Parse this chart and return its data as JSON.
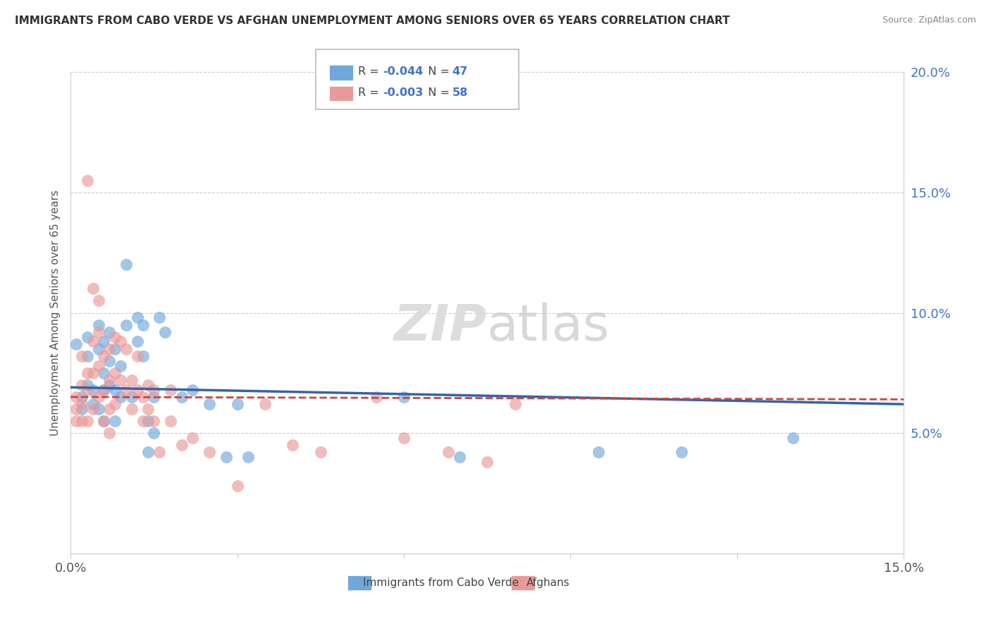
{
  "title": "IMMIGRANTS FROM CABO VERDE VS AFGHAN UNEMPLOYMENT AMONG SENIORS OVER 65 YEARS CORRELATION CHART",
  "source": "Source: ZipAtlas.com",
  "ylabel": "Unemployment Among Seniors over 65 years",
  "xlim": [
    0.0,
    0.15
  ],
  "ylim": [
    0.0,
    0.2
  ],
  "xticks": [
    0.0,
    0.03,
    0.06,
    0.09,
    0.12,
    0.15
  ],
  "yticks": [
    0.0,
    0.05,
    0.1,
    0.15,
    0.2
  ],
  "xtick_labels": [
    "0.0%",
    "",
    "",
    "",
    "",
    "15.0%"
  ],
  "ytick_labels": [
    "",
    "5.0%",
    "10.0%",
    "15.0%",
    "20.0%"
  ],
  "series1_color": "#6fa8dc",
  "series2_color": "#ea9999",
  "series1_label": "Immigrants from Cabo Verde",
  "series2_label": "Afghans",
  "series1_R": -0.044,
  "series1_N": 47,
  "series2_R": -0.003,
  "series2_N": 58,
  "line1_color": "#3465a4",
  "line2_color": "#cc4444",
  "watermark_zip": "ZIP",
  "watermark_atlas": "atlas",
  "background_color": "#ffffff",
  "grid_color": "#cccccc",
  "series1_x": [
    0.001,
    0.002,
    0.002,
    0.003,
    0.003,
    0.003,
    0.004,
    0.004,
    0.005,
    0.005,
    0.005,
    0.006,
    0.006,
    0.006,
    0.006,
    0.007,
    0.007,
    0.007,
    0.008,
    0.008,
    0.008,
    0.009,
    0.009,
    0.01,
    0.01,
    0.011,
    0.012,
    0.012,
    0.013,
    0.013,
    0.014,
    0.014,
    0.015,
    0.015,
    0.016,
    0.017,
    0.02,
    0.022,
    0.025,
    0.028,
    0.03,
    0.032,
    0.06,
    0.07,
    0.095,
    0.11,
    0.13
  ],
  "series1_y": [
    0.087,
    0.065,
    0.06,
    0.09,
    0.082,
    0.07,
    0.068,
    0.062,
    0.095,
    0.085,
    0.06,
    0.088,
    0.075,
    0.068,
    0.055,
    0.092,
    0.08,
    0.07,
    0.085,
    0.068,
    0.055,
    0.078,
    0.065,
    0.12,
    0.095,
    0.065,
    0.098,
    0.088,
    0.095,
    0.082,
    0.055,
    0.042,
    0.065,
    0.05,
    0.098,
    0.092,
    0.065,
    0.068,
    0.062,
    0.04,
    0.062,
    0.04,
    0.065,
    0.04,
    0.042,
    0.042,
    0.048
  ],
  "series2_x": [
    0.001,
    0.001,
    0.001,
    0.002,
    0.002,
    0.002,
    0.002,
    0.003,
    0.003,
    0.003,
    0.003,
    0.004,
    0.004,
    0.004,
    0.004,
    0.005,
    0.005,
    0.005,
    0.005,
    0.006,
    0.006,
    0.006,
    0.007,
    0.007,
    0.007,
    0.007,
    0.008,
    0.008,
    0.008,
    0.009,
    0.009,
    0.01,
    0.01,
    0.011,
    0.011,
    0.012,
    0.012,
    0.013,
    0.013,
    0.014,
    0.014,
    0.015,
    0.015,
    0.016,
    0.018,
    0.018,
    0.02,
    0.022,
    0.025,
    0.03,
    0.035,
    0.04,
    0.045,
    0.055,
    0.06,
    0.068,
    0.075,
    0.08
  ],
  "series2_y": [
    0.065,
    0.06,
    0.055,
    0.082,
    0.07,
    0.062,
    0.055,
    0.155,
    0.075,
    0.068,
    0.055,
    0.11,
    0.088,
    0.075,
    0.06,
    0.105,
    0.092,
    0.078,
    0.065,
    0.082,
    0.068,
    0.055,
    0.085,
    0.072,
    0.06,
    0.05,
    0.09,
    0.075,
    0.062,
    0.088,
    0.072,
    0.085,
    0.068,
    0.072,
    0.06,
    0.082,
    0.068,
    0.065,
    0.055,
    0.07,
    0.06,
    0.068,
    0.055,
    0.042,
    0.068,
    0.055,
    0.045,
    0.048,
    0.042,
    0.028,
    0.062,
    0.045,
    0.042,
    0.065,
    0.048,
    0.042,
    0.038,
    0.062
  ],
  "line1_x0": 0.0,
  "line1_y0": 0.069,
  "line1_x1": 0.15,
  "line1_y1": 0.062,
  "line2_x0": 0.0,
  "line2_y0": 0.065,
  "line2_x1": 0.15,
  "line2_y1": 0.064
}
